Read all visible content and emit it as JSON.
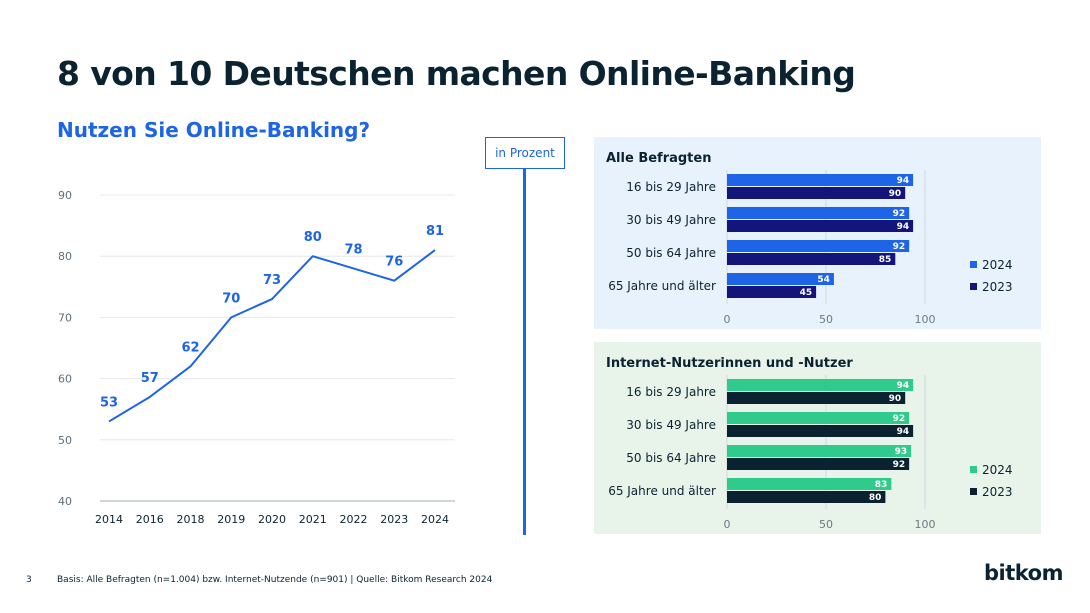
{
  "header": {
    "title": "8 von 10 Deutschen machen Online-Banking",
    "subtitle": "Nutzen Sie Online-Banking?",
    "unit_label": "in Prozent"
  },
  "colors": {
    "line": "#1e64e6",
    "dark_text": "#0b2330",
    "bar_2024_a": "#1e64e6",
    "bar_2023_a": "#14157a",
    "bar_2024_b": "#2ecb8c",
    "bar_2023_b": "#0b2330",
    "panel_a_bg": "#e8f2fd",
    "panel_b_bg": "#e8f4ea"
  },
  "chart_data": [
    {
      "type": "line",
      "title": "",
      "x": [
        "2014",
        "2016",
        "2018",
        "2019",
        "2020",
        "2021",
        "2022",
        "2023",
        "2024"
      ],
      "series": [
        {
          "values": [
            53,
            57,
            62,
            70,
            73,
            80,
            78,
            76,
            81
          ]
        }
      ],
      "ylim": [
        40,
        90
      ],
      "yticks": [
        40,
        50,
        60,
        70,
        80,
        90
      ],
      "grid": true
    },
    {
      "type": "bar",
      "orientation": "horizontal",
      "title": "Alle Befragten",
      "categories": [
        "16 bis 29 Jahre",
        "30 bis 49 Jahre",
        "50 bis 64 Jahre",
        "65 Jahre und älter"
      ],
      "series": [
        {
          "name": "2024",
          "values": [
            94,
            92,
            92,
            54
          ]
        },
        {
          "name": "2023",
          "values": [
            90,
            94,
            85,
            45
          ]
        }
      ],
      "xlim": [
        0,
        100
      ],
      "xticks": [
        0,
        50,
        100
      ],
      "legend": "right"
    },
    {
      "type": "bar",
      "orientation": "horizontal",
      "title": "Internet-Nutzerinnen und -Nutzer",
      "categories": [
        "16 bis 29 Jahre",
        "30 bis 49 Jahre",
        "50 bis 64 Jahre",
        "65 Jahre und älter"
      ],
      "series": [
        {
          "name": "2024",
          "values": [
            94,
            92,
            93,
            83
          ]
        },
        {
          "name": "2023",
          "values": [
            90,
            94,
            92,
            80
          ]
        }
      ],
      "xlim": [
        0,
        100
      ],
      "xticks": [
        0,
        50,
        100
      ],
      "legend": "right"
    }
  ],
  "footer": {
    "page_number": "3",
    "source": "Basis: Alle Befragten (n=1.004) bzw. Internet-Nutzende (n=901) | Quelle: Bitkom Research 2024",
    "logo_text": "bitkom"
  }
}
